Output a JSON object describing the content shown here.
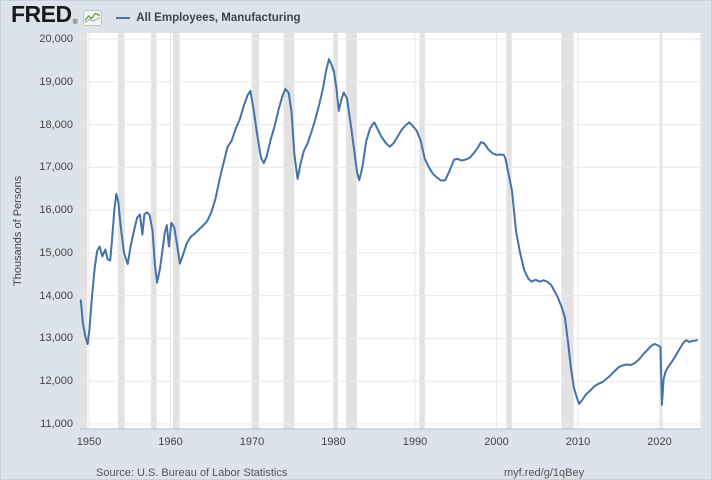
{
  "header": {
    "logo_text": "FRED",
    "logo_registered": "®",
    "legend_label": "All Employees, Manufacturing"
  },
  "y_axis": {
    "title": "Thousands of Persons"
  },
  "footer": {
    "source": "Source: U.S. Bureau of Labor Statistics",
    "link": "myf.red/g/1qBey"
  },
  "colors": {
    "background": "#dce3ea",
    "border": "#c9d2da",
    "plot_background": "#ffffff",
    "gridline": "#e9e9e9",
    "recession_band": "#e2e2e2",
    "axis_line": "#b6bcc2",
    "line": "#4572a7",
    "text": "#444444",
    "legend_text": "#3c4650",
    "logo_text": "#1a1a1a",
    "footer_text": "#555555",
    "logo_icon_green": "#6f9f55",
    "logo_icon_blue": "#9fb4c8"
  },
  "chart_data": {
    "type": "line",
    "title": "All Employees, Manufacturing",
    "xlabel": "",
    "ylabel": "Thousands of Persons",
    "xlim": [
      1948.9,
      2025.0
    ],
    "ylim": [
      11000,
      20000
    ],
    "grid": true,
    "legend_position": "top-left",
    "y_ticks": [
      {
        "value": 20000,
        "label": "20,000"
      },
      {
        "value": 19000,
        "label": "19,000"
      },
      {
        "value": 18000,
        "label": "18,000"
      },
      {
        "value": 17000,
        "label": "17,000"
      },
      {
        "value": 16000,
        "label": "16,000"
      },
      {
        "value": 15000,
        "label": "15,000"
      },
      {
        "value": 14000,
        "label": "14,000"
      },
      {
        "value": 13000,
        "label": "13,000"
      },
      {
        "value": 12000,
        "label": "12,000"
      },
      {
        "value": 11000,
        "label": "11,000"
      }
    ],
    "x_ticks": [
      {
        "value": 1950,
        "label": "1950"
      },
      {
        "value": 1960,
        "label": "1960"
      },
      {
        "value": 1970,
        "label": "1970"
      },
      {
        "value": 1980,
        "label": "1980"
      },
      {
        "value": 1990,
        "label": "1990"
      },
      {
        "value": 2000,
        "label": "2000"
      },
      {
        "value": 2010,
        "label": "2010"
      },
      {
        "value": 2020,
        "label": "2020"
      }
    ],
    "recession_bands": [
      [
        1948.87,
        1949.79
      ],
      [
        1953.54,
        1954.37
      ],
      [
        1957.62,
        1958.29
      ],
      [
        1960.29,
        1961.12
      ],
      [
        1969.96,
        1970.87
      ],
      [
        1973.87,
        1975.2
      ],
      [
        1980.04,
        1980.54
      ],
      [
        1981.54,
        1982.87
      ],
      [
        1990.54,
        1991.21
      ],
      [
        2001.21,
        2001.87
      ],
      [
        2007.96,
        2009.46
      ],
      [
        2020.12,
        2020.37
      ]
    ],
    "series": [
      {
        "name": "All Employees, Manufacturing",
        "units": "Thousands of Persons",
        "points": [
          [
            1949.0,
            13890
          ],
          [
            1949.25,
            13350
          ],
          [
            1949.55,
            13050
          ],
          [
            1949.83,
            12870
          ],
          [
            1950.05,
            13200
          ],
          [
            1950.35,
            13950
          ],
          [
            1950.7,
            14650
          ],
          [
            1951.0,
            15050
          ],
          [
            1951.3,
            15150
          ],
          [
            1951.65,
            14920
          ],
          [
            1952.0,
            15080
          ],
          [
            1952.3,
            14850
          ],
          [
            1952.6,
            14820
          ],
          [
            1952.85,
            15350
          ],
          [
            1953.1,
            16000
          ],
          [
            1953.35,
            16380
          ],
          [
            1953.6,
            16200
          ],
          [
            1953.9,
            15600
          ],
          [
            1954.3,
            15000
          ],
          [
            1954.75,
            14740
          ],
          [
            1955.1,
            15150
          ],
          [
            1955.5,
            15500
          ],
          [
            1955.9,
            15820
          ],
          [
            1956.25,
            15900
          ],
          [
            1956.55,
            15430
          ],
          [
            1956.8,
            15900
          ],
          [
            1957.1,
            15950
          ],
          [
            1957.45,
            15880
          ],
          [
            1957.8,
            15500
          ],
          [
            1958.1,
            14700
          ],
          [
            1958.35,
            14300
          ],
          [
            1958.7,
            14620
          ],
          [
            1959.0,
            15050
          ],
          [
            1959.3,
            15480
          ],
          [
            1959.55,
            15650
          ],
          [
            1959.8,
            15150
          ],
          [
            1960.1,
            15700
          ],
          [
            1960.45,
            15600
          ],
          [
            1960.8,
            15200
          ],
          [
            1961.15,
            14750
          ],
          [
            1961.5,
            14930
          ],
          [
            1962.0,
            15230
          ],
          [
            1962.5,
            15380
          ],
          [
            1963.0,
            15450
          ],
          [
            1963.5,
            15550
          ],
          [
            1964.0,
            15640
          ],
          [
            1964.5,
            15740
          ],
          [
            1965.0,
            15950
          ],
          [
            1965.5,
            16250
          ],
          [
            1966.0,
            16700
          ],
          [
            1966.5,
            17100
          ],
          [
            1967.0,
            17480
          ],
          [
            1967.5,
            17620
          ],
          [
            1968.0,
            17900
          ],
          [
            1968.5,
            18120
          ],
          [
            1969.0,
            18440
          ],
          [
            1969.45,
            18680
          ],
          [
            1969.8,
            18790
          ],
          [
            1970.2,
            18350
          ],
          [
            1970.65,
            17750
          ],
          [
            1971.1,
            17220
          ],
          [
            1971.45,
            17100
          ],
          [
            1971.8,
            17260
          ],
          [
            1972.3,
            17650
          ],
          [
            1972.8,
            17980
          ],
          [
            1973.3,
            18380
          ],
          [
            1973.75,
            18680
          ],
          [
            1974.1,
            18830
          ],
          [
            1974.5,
            18740
          ],
          [
            1974.85,
            18300
          ],
          [
            1975.2,
            17300
          ],
          [
            1975.6,
            16730
          ],
          [
            1975.95,
            17080
          ],
          [
            1976.35,
            17380
          ],
          [
            1976.8,
            17550
          ],
          [
            1977.25,
            17800
          ],
          [
            1977.7,
            18080
          ],
          [
            1978.2,
            18430
          ],
          [
            1978.7,
            18830
          ],
          [
            1979.1,
            19270
          ],
          [
            1979.45,
            19530
          ],
          [
            1979.75,
            19400
          ],
          [
            1980.05,
            19240
          ],
          [
            1980.35,
            18850
          ],
          [
            1980.65,
            18320
          ],
          [
            1980.95,
            18570
          ],
          [
            1981.25,
            18750
          ],
          [
            1981.65,
            18620
          ],
          [
            1982.05,
            18100
          ],
          [
            1982.5,
            17450
          ],
          [
            1982.9,
            16880
          ],
          [
            1983.15,
            16700
          ],
          [
            1983.55,
            17000
          ],
          [
            1984.0,
            17600
          ],
          [
            1984.5,
            17920
          ],
          [
            1985.0,
            18050
          ],
          [
            1985.4,
            17900
          ],
          [
            1985.9,
            17710
          ],
          [
            1986.4,
            17570
          ],
          [
            1986.9,
            17480
          ],
          [
            1987.4,
            17570
          ],
          [
            1987.9,
            17730
          ],
          [
            1988.4,
            17890
          ],
          [
            1988.9,
            17990
          ],
          [
            1989.3,
            18050
          ],
          [
            1989.75,
            17960
          ],
          [
            1990.2,
            17860
          ],
          [
            1990.7,
            17620
          ],
          [
            1991.2,
            17200
          ],
          [
            1991.7,
            17000
          ],
          [
            1992.2,
            16850
          ],
          [
            1992.7,
            16760
          ],
          [
            1993.2,
            16690
          ],
          [
            1993.7,
            16700
          ],
          [
            1994.2,
            16900
          ],
          [
            1994.8,
            17180
          ],
          [
            1995.2,
            17200
          ],
          [
            1995.7,
            17160
          ],
          [
            1996.2,
            17180
          ],
          [
            1996.7,
            17220
          ],
          [
            1997.2,
            17330
          ],
          [
            1997.7,
            17460
          ],
          [
            1998.1,
            17590
          ],
          [
            1998.5,
            17560
          ],
          [
            1999.0,
            17420
          ],
          [
            1999.5,
            17330
          ],
          [
            2000.0,
            17290
          ],
          [
            2000.5,
            17300
          ],
          [
            2000.9,
            17290
          ],
          [
            2001.1,
            17200
          ],
          [
            2001.5,
            16830
          ],
          [
            2001.9,
            16450
          ],
          [
            2002.4,
            15500
          ],
          [
            2002.9,
            15000
          ],
          [
            2003.4,
            14600
          ],
          [
            2003.9,
            14400
          ],
          [
            2004.3,
            14330
          ],
          [
            2004.8,
            14370
          ],
          [
            2005.3,
            14330
          ],
          [
            2005.8,
            14360
          ],
          [
            2006.3,
            14320
          ],
          [
            2006.7,
            14250
          ],
          [
            2007.1,
            14110
          ],
          [
            2007.5,
            13970
          ],
          [
            2008.0,
            13730
          ],
          [
            2008.4,
            13480
          ],
          [
            2008.8,
            12880
          ],
          [
            2009.15,
            12280
          ],
          [
            2009.5,
            11850
          ],
          [
            2009.85,
            11620
          ],
          [
            2010.15,
            11470
          ],
          [
            2010.55,
            11570
          ],
          [
            2011.0,
            11700
          ],
          [
            2011.5,
            11780
          ],
          [
            2012.0,
            11880
          ],
          [
            2012.5,
            11940
          ],
          [
            2013.0,
            11980
          ],
          [
            2013.5,
            12060
          ],
          [
            2014.0,
            12140
          ],
          [
            2014.5,
            12240
          ],
          [
            2015.0,
            12330
          ],
          [
            2015.5,
            12370
          ],
          [
            2016.0,
            12390
          ],
          [
            2016.5,
            12380
          ],
          [
            2017.0,
            12430
          ],
          [
            2017.5,
            12510
          ],
          [
            2018.0,
            12630
          ],
          [
            2018.5,
            12730
          ],
          [
            2019.0,
            12830
          ],
          [
            2019.4,
            12870
          ],
          [
            2019.8,
            12840
          ],
          [
            2020.12,
            12800
          ],
          [
            2020.3,
            11450
          ],
          [
            2020.5,
            12050
          ],
          [
            2020.75,
            12230
          ],
          [
            2021.1,
            12350
          ],
          [
            2021.5,
            12450
          ],
          [
            2021.9,
            12570
          ],
          [
            2022.3,
            12700
          ],
          [
            2022.7,
            12830
          ],
          [
            2023.0,
            12920
          ],
          [
            2023.3,
            12960
          ],
          [
            2023.65,
            12920
          ],
          [
            2024.0,
            12940
          ],
          [
            2024.35,
            12950
          ],
          [
            2024.6,
            12960
          ]
        ]
      }
    ]
  }
}
